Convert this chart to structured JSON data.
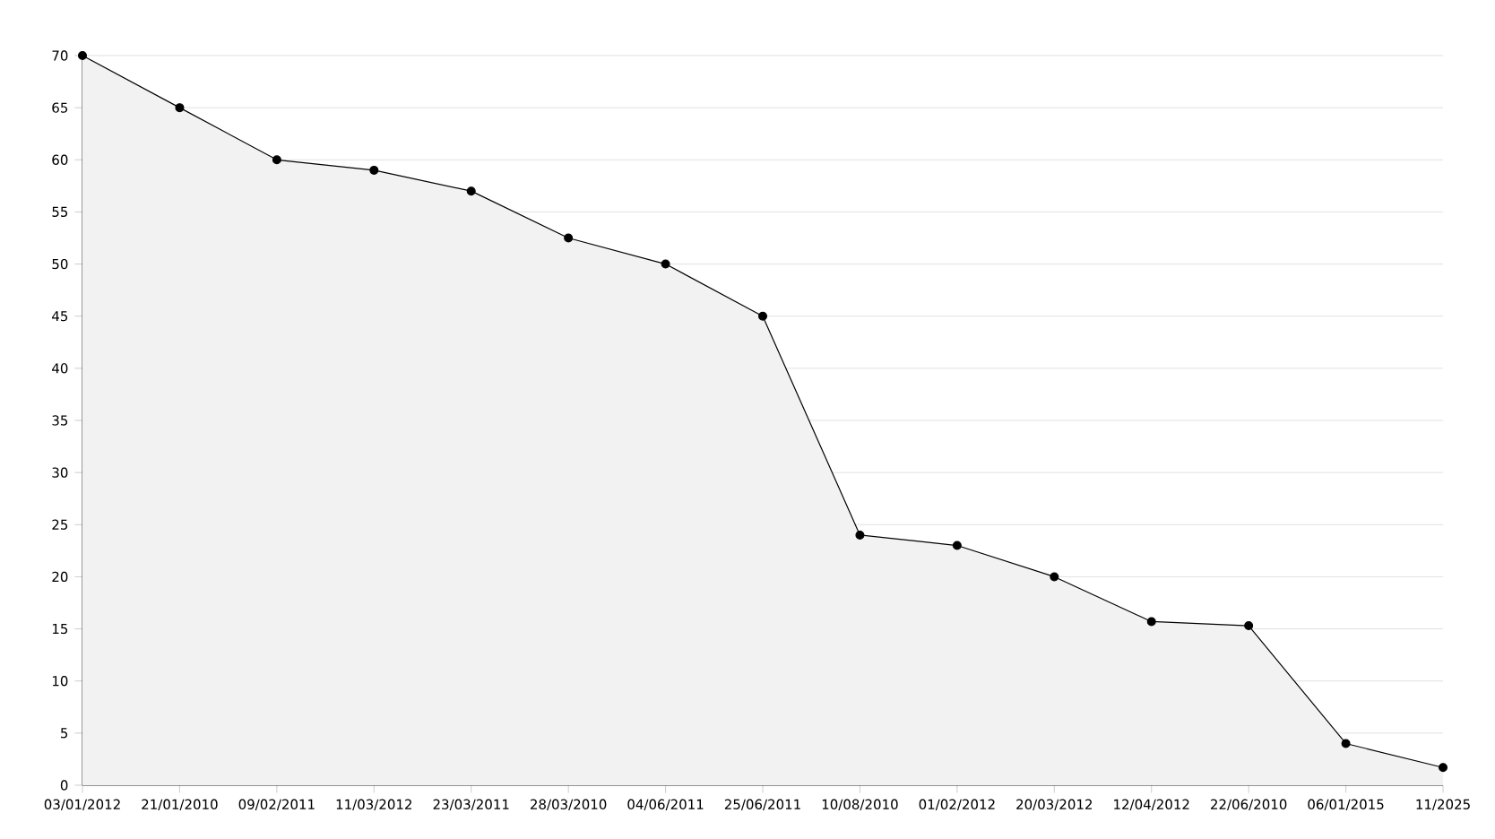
{
  "chart_data": {
    "type": "area",
    "categories": [
      "03/01/2012",
      "21/01/2010",
      "09/02/2011",
      "11/03/2012",
      "23/03/2011",
      "28/03/2010",
      "04/06/2011",
      "25/06/2011",
      "10/08/2010",
      "01/02/2012",
      "20/03/2012",
      "12/04/2012",
      "22/06/2010",
      "06/01/2015",
      "11/2025"
    ],
    "series": [
      {
        "color": "#000000",
        "values": [
          70,
          65,
          60,
          59,
          57,
          52.5,
          50,
          45,
          24,
          23,
          20,
          15.7,
          15.3,
          4,
          1.7
        ]
      }
    ],
    "ylim": [
      0,
      70
    ],
    "yticks": [
      0,
      5,
      10,
      15,
      20,
      25,
      30,
      35,
      40,
      45,
      50,
      55,
      60,
      65,
      70
    ],
    "grid": "y",
    "marker": "circle",
    "line_style": "solid"
  }
}
